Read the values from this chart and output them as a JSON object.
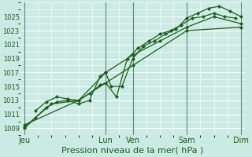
{
  "background_color": "#cceae4",
  "grid_color": "#ffffff",
  "line_color": "#1a5c1a",
  "marker_color": "#1a5c1a",
  "ylabel_ticks": [
    1009,
    1011,
    1013,
    1015,
    1017,
    1019,
    1021,
    1023,
    1025
  ],
  "ylim": [
    1008.0,
    1027.0
  ],
  "xlim": [
    -0.15,
    8.15
  ],
  "xlabel": "Pression niveau de la mer( hPa )",
  "xlabel_fontsize": 8,
  "tick_fontsize": 6,
  "xtick_labels": [
    "Jeu",
    "Lun",
    "Ven",
    "Sam",
    "Dim"
  ],
  "xtick_positions": [
    0.0,
    3.0,
    4.0,
    6.0,
    8.0
  ],
  "vline_color": "#5a8a78",
  "series1_x": [
    0.0,
    0.4,
    0.8,
    1.2,
    1.6,
    2.0,
    2.4,
    2.8,
    3.0,
    3.2,
    3.6,
    4.0,
    4.4,
    4.8,
    5.2,
    5.6,
    6.0,
    6.4,
    6.8,
    7.2,
    7.6,
    8.0
  ],
  "series1_y": [
    1009.0,
    1010.5,
    1012.0,
    1012.8,
    1013.0,
    1012.5,
    1013.0,
    1016.5,
    1017.0,
    1015.0,
    1015.0,
    1019.0,
    1020.8,
    1021.5,
    1022.5,
    1023.2,
    1024.8,
    1025.5,
    1026.2,
    1026.5,
    1025.8,
    1025.0
  ],
  "series2_x": [
    0.4,
    0.8,
    1.2,
    1.6,
    2.0,
    2.4,
    2.8,
    3.0,
    3.4,
    3.8,
    4.2,
    4.6,
    5.0,
    5.4,
    5.8,
    6.2,
    6.6,
    7.0,
    7.4,
    7.8
  ],
  "series2_y": [
    1011.5,
    1012.8,
    1013.5,
    1013.2,
    1013.0,
    1014.0,
    1015.2,
    1015.5,
    1013.5,
    1019.0,
    1020.5,
    1021.5,
    1022.5,
    1023.0,
    1023.8,
    1024.8,
    1025.0,
    1025.5,
    1025.0,
    1024.8
  ],
  "series3_x": [
    0.0,
    1.0,
    2.0,
    3.0,
    4.0,
    5.0,
    6.0,
    7.0,
    8.0
  ],
  "series3_y": [
    1009.2,
    1012.5,
    1013.0,
    1017.0,
    1019.5,
    1021.5,
    1023.5,
    1025.0,
    1024.0
  ],
  "series4_x": [
    0.0,
    2.0,
    4.0,
    6.0,
    8.0
  ],
  "series4_y": [
    1009.5,
    1013.0,
    1018.0,
    1023.0,
    1023.5
  ]
}
